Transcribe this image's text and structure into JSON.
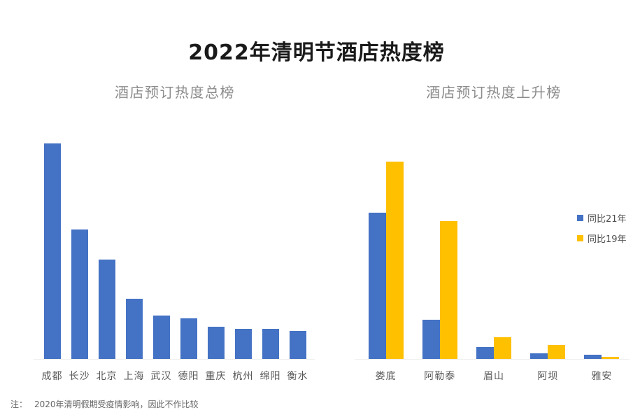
{
  "title": "2022年清明节酒店热度榜",
  "footnote": {
    "label": "注：",
    "text": "2020年清明假期受疫情影响，因此不作比较"
  },
  "colors": {
    "blue": "#4472C4",
    "yellow": "#FFC000",
    "title_text": "#1a1a1a",
    "subtitle_text": "#8c8c8c",
    "axis_label_text": "#595959",
    "legend_text": "#4d4d4d",
    "footnote_text": "#666666",
    "axis_line": "#ededed",
    "background": "#ffffff"
  },
  "chart_data": [
    {
      "type": "bar",
      "title": "酒店预订热度总榜",
      "categories": [
        "成都",
        "长沙",
        "北京",
        "上海",
        "武汉",
        "德阳",
        "重庆",
        "杭州",
        "绵阳",
        "衡水"
      ],
      "values": [
        100,
        60,
        46,
        28,
        20,
        19,
        15,
        14,
        14,
        13
      ],
      "series_color": "#4472C4",
      "xlabel": "",
      "ylabel": "",
      "value_axis": "unlabeled; values are relative heights with max bar = 100",
      "ylim": [
        0,
        100
      ],
      "grid": false,
      "legend": false
    },
    {
      "type": "bar",
      "title": "酒店预订热度上升榜",
      "categories": [
        "娄底",
        "阿勒泰",
        "眉山",
        "阿坝",
        "雅安"
      ],
      "series": [
        {
          "name": "同比21年",
          "color": "#4472C4",
          "values": [
            74,
            20,
            6,
            3,
            2
          ]
        },
        {
          "name": "同比19年",
          "color": "#FFC000",
          "values": [
            100,
            70,
            11,
            7,
            1
          ]
        }
      ],
      "xlabel": "",
      "ylabel": "",
      "value_axis": "unlabeled; values are relative heights with max bar = 100",
      "ylim": [
        0,
        100
      ],
      "grid": false,
      "legend_position": "right"
    }
  ]
}
